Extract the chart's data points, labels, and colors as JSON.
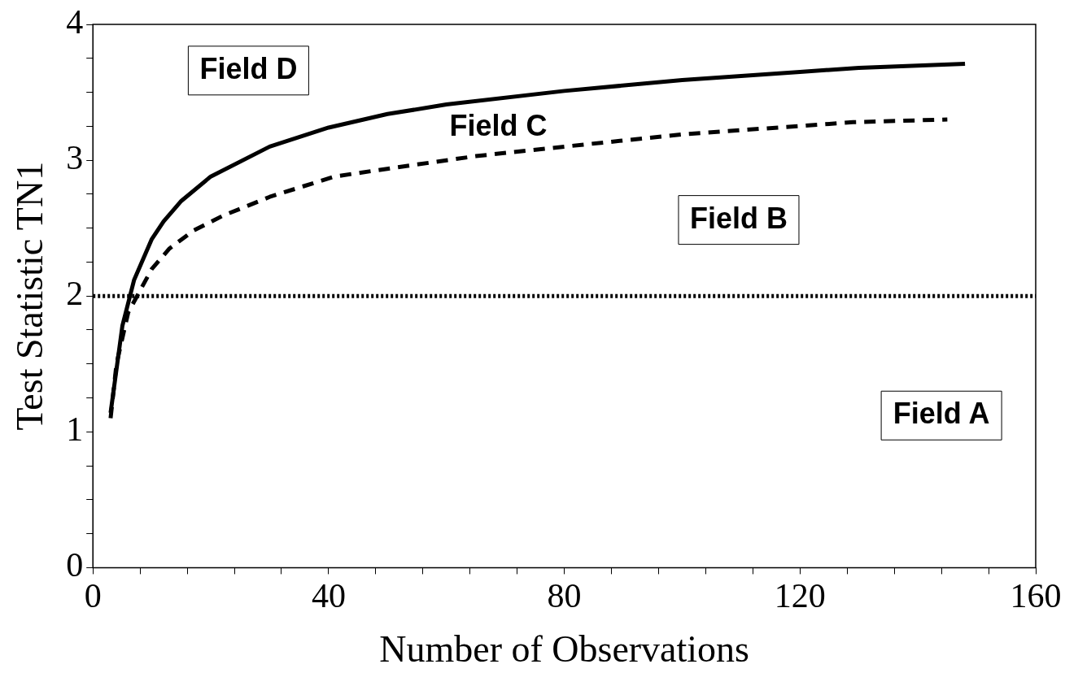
{
  "chart_data": {
    "type": "line",
    "xlabel": "Number of Observations",
    "ylabel": "Test Statistic TN1",
    "xlim": [
      0,
      160
    ],
    "ylim": [
      0,
      4
    ],
    "xticks": [
      0,
      {
        "value": 8,
        "label": null
      },
      {
        "value": 16,
        "label": null
      },
      {
        "value": 24,
        "label": null
      },
      {
        "value": 32,
        "label": null
      },
      40,
      {
        "value": 48,
        "label": null
      },
      {
        "value": 56,
        "label": null
      },
      {
        "value": 64,
        "label": null
      },
      {
        "value": 72,
        "label": null
      },
      80,
      {
        "value": 88,
        "label": null
      },
      {
        "value": 96,
        "label": null
      },
      {
        "value": 104,
        "label": null
      },
      {
        "value": 112,
        "label": null
      },
      120,
      {
        "value": 128,
        "label": null
      },
      {
        "value": 136,
        "label": null
      },
      {
        "value": 144,
        "label": null
      },
      {
        "value": 152,
        "label": null
      },
      160
    ],
    "yticks": [
      0,
      {
        "value": 0.25,
        "label": null
      },
      {
        "value": 0.5,
        "label": null
      },
      {
        "value": 0.75,
        "label": null
      },
      1,
      {
        "value": 1.25,
        "label": null
      },
      {
        "value": 1.5,
        "label": null
      },
      {
        "value": 1.75,
        "label": null
      },
      2,
      {
        "value": 2.25,
        "label": null
      },
      {
        "value": 2.5,
        "label": null
      },
      {
        "value": 2.75,
        "label": null
      },
      3,
      {
        "value": 3.25,
        "label": null
      },
      {
        "value": 3.5,
        "label": null
      },
      {
        "value": 3.75,
        "label": null
      },
      4
    ],
    "grid": false,
    "legend": false,
    "marker": "none",
    "series": [
      {
        "color": "#000000",
        "line_style": "solid",
        "x": [
          3,
          5,
          7,
          10,
          12,
          15,
          20,
          30,
          40,
          50,
          60,
          80,
          100,
          120,
          130,
          148
        ],
        "values": [
          1.14,
          1.78,
          2.12,
          2.42,
          2.55,
          2.7,
          2.88,
          3.1,
          3.24,
          3.34,
          3.41,
          3.51,
          3.59,
          3.65,
          3.68,
          3.71
        ]
      },
      {
        "color": "#000000",
        "line_style": "dashed",
        "x": [
          3,
          4,
          6,
          8,
          10,
          13,
          17,
          22,
          30,
          41,
          52,
          65,
          80,
          100,
          129,
          145
        ],
        "values": [
          1.1,
          1.5,
          1.88,
          2.04,
          2.2,
          2.35,
          2.48,
          2.59,
          2.73,
          2.88,
          2.95,
          3.03,
          3.1,
          3.19,
          3.28,
          3.3
        ]
      }
    ],
    "ref_lines": [
      {
        "axis": "y",
        "value": 2,
        "line_style": "dotted",
        "color": "#000000"
      }
    ],
    "annotations": [
      "Field D",
      "Field C",
      "Field B",
      "Field A"
    ]
  }
}
